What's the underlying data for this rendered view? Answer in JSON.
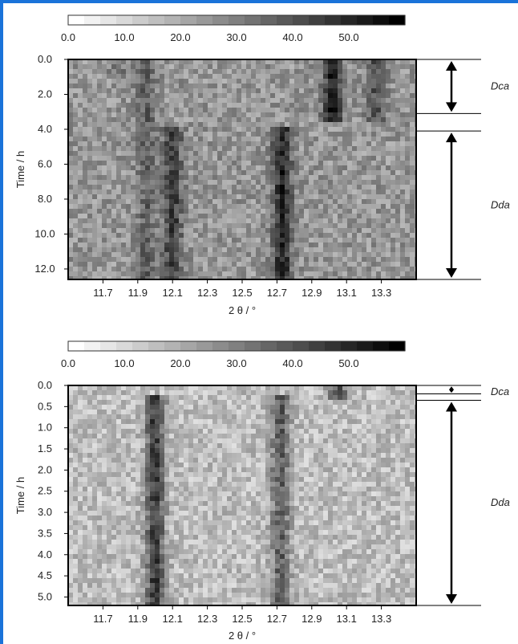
{
  "chart_data": [
    {
      "type": "heatmap",
      "colorbar": {
        "ticks": [
          "0.0",
          "10.0",
          "20.0",
          "30.0",
          "40.0",
          "50.0"
        ],
        "range": [
          0,
          60
        ],
        "cmap": "white-to-black"
      },
      "xlabel": "2 θ / °",
      "ylabel": "Time / h",
      "x_ticks": [
        "11.7",
        "11.9",
        "12.1",
        "12.3",
        "12.5",
        "12.7",
        "12.9",
        "13.1",
        "13.3"
      ],
      "y_ticks": [
        "0.0",
        "2.0",
        "4.0",
        "6.0",
        "8.0",
        "10.0",
        "12.0"
      ],
      "xlim": [
        11.5,
        13.5
      ],
      "ylim": [
        0,
        12.6
      ],
      "peaks": [
        {
          "x": 11.95,
          "t_start": 0.0,
          "t_end": 12.6,
          "intensity": 22
        },
        {
          "x": 12.1,
          "t_start": 4.0,
          "t_end": 12.6,
          "intensity": 38
        },
        {
          "x": 12.73,
          "t_start": 4.0,
          "t_end": 12.6,
          "intensity": 48
        },
        {
          "x": 13.02,
          "t_start": 0.0,
          "t_end": 3.6,
          "intensity": 50
        },
        {
          "x": 13.27,
          "t_start": 0.0,
          "t_end": 3.4,
          "intensity": 28
        },
        {
          "x": 11.78,
          "t_start": 0.0,
          "t_end": 1.0,
          "intensity": 14
        }
      ],
      "phases": [
        {
          "label": "Dca",
          "t_start": 0.0,
          "t_end": 3.1
        },
        {
          "label": "Dda",
          "t_start": 4.1,
          "t_end": 12.6
        }
      ]
    },
    {
      "type": "heatmap",
      "colorbar": {
        "ticks": [
          "0.0",
          "10.0",
          "20.0",
          "30.0",
          "40.0",
          "50.0"
        ],
        "range": [
          0,
          60
        ],
        "cmap": "white-to-black"
      },
      "xlabel": "2 θ / °",
      "ylabel": "Time / h",
      "x_ticks": [
        "11.7",
        "11.9",
        "12.1",
        "12.3",
        "12.5",
        "12.7",
        "12.9",
        "13.1",
        "13.3"
      ],
      "y_ticks": [
        "0.0",
        "0.5",
        "1.0",
        "1.5",
        "2.0",
        "2.5",
        "3.0",
        "3.5",
        "4.0",
        "4.5",
        "5.0"
      ],
      "xlim": [
        11.5,
        13.5
      ],
      "ylim": [
        0,
        5.2
      ],
      "peaks": [
        {
          "x": 12.0,
          "t_start": 0.3,
          "t_end": 5.2,
          "intensity": 55
        },
        {
          "x": 12.72,
          "t_start": 0.3,
          "t_end": 5.2,
          "intensity": 40
        },
        {
          "x": 13.05,
          "t_start": 0.0,
          "t_end": 0.25,
          "intensity": 45
        }
      ],
      "phases": [
        {
          "label": "Dca",
          "t_start": 0.0,
          "t_end": 0.2
        },
        {
          "label": "Dda",
          "t_start": 0.35,
          "t_end": 5.2
        }
      ]
    }
  ]
}
